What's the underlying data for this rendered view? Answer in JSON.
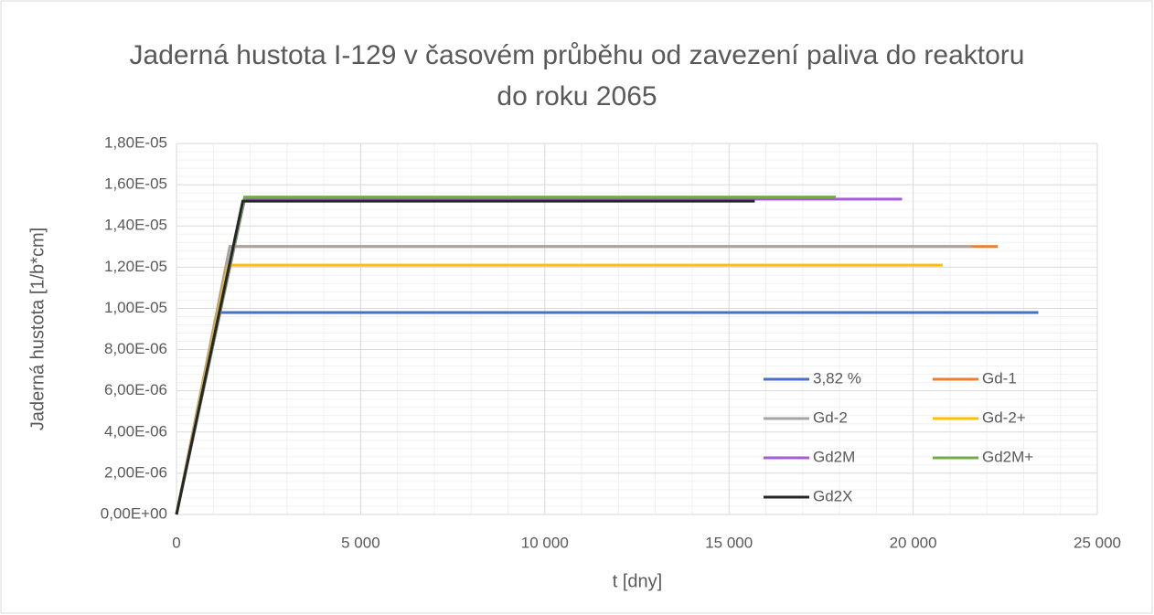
{
  "chart_data": {
    "type": "line",
    "title": "Jaderná hustota I-129 v časovém průběhu od zavezení paliva do reaktoru do roku 2065",
    "xlabel": "t [dny]",
    "ylabel": "Jaderná hustota [1/b*cm]",
    "xlim": [
      0,
      25000
    ],
    "xticks": [
      0,
      {
        "value": 5000,
        "label": "5 000"
      },
      {
        "value": 10000,
        "label": "10 000"
      },
      {
        "value": 15000,
        "label": "15 000"
      },
      {
        "value": 20000,
        "label": "20 000"
      },
      {
        "value": 25000,
        "label": "25 000"
      }
    ],
    "ylim": [
      0,
      1.8e-05
    ],
    "yticks": [
      {
        "value": 0,
        "label": "0,00E+00"
      },
      {
        "value": 2e-06,
        "label": "2,00E-06"
      },
      {
        "value": 4e-06,
        "label": "4,00E-06"
      },
      {
        "value": 6e-06,
        "label": "6,00E-06"
      },
      {
        "value": 8e-06,
        "label": "8,00E-06"
      },
      {
        "value": 1e-05,
        "label": "1,00E-05"
      },
      {
        "value": 1.2e-05,
        "label": "1,20E-05"
      },
      {
        "value": 1.4e-05,
        "label": "1,40E-05"
      },
      {
        "value": 1.6e-05,
        "label": "1,60E-05"
      },
      {
        "value": 1.8e-05,
        "label": "1,80E-05"
      }
    ],
    "grid": true,
    "minor_grid": true,
    "legend": "lower right",
    "series": [
      {
        "name": "3,82 %",
        "color": "#4472c4",
        "x": [
          0,
          1100,
          23400
        ],
        "values": [
          0,
          9.8e-06,
          9.8e-06
        ]
      },
      {
        "name": "Gd-1",
        "color": "#ed7d31",
        "x": [
          0,
          1450,
          22300
        ],
        "values": [
          0,
          1.3e-05,
          1.3e-05
        ]
      },
      {
        "name": "Gd-2",
        "color": "#a5a5a5",
        "x": [
          0,
          1450,
          21600
        ],
        "values": [
          0,
          1.3e-05,
          1.3e-05
        ]
      },
      {
        "name": "Gd-2+",
        "color": "#ffc000",
        "x": [
          0,
          1400,
          20800
        ],
        "values": [
          0,
          1.21e-05,
          1.21e-05
        ]
      },
      {
        "name": "Gd2M",
        "color": "#a35ed6",
        "x": [
          0,
          1850,
          19700
        ],
        "values": [
          0,
          1.53e-05,
          1.53e-05
        ]
      },
      {
        "name": "Gd2M+",
        "color": "#70ad47",
        "x": [
          0,
          1850,
          17900
        ],
        "values": [
          0,
          1.54e-05,
          1.54e-05
        ]
      },
      {
        "name": "Gd2X",
        "color": "#262626",
        "x": [
          0,
          1800,
          15700
        ],
        "values": [
          0,
          1.52e-05,
          1.52e-05
        ]
      }
    ]
  }
}
